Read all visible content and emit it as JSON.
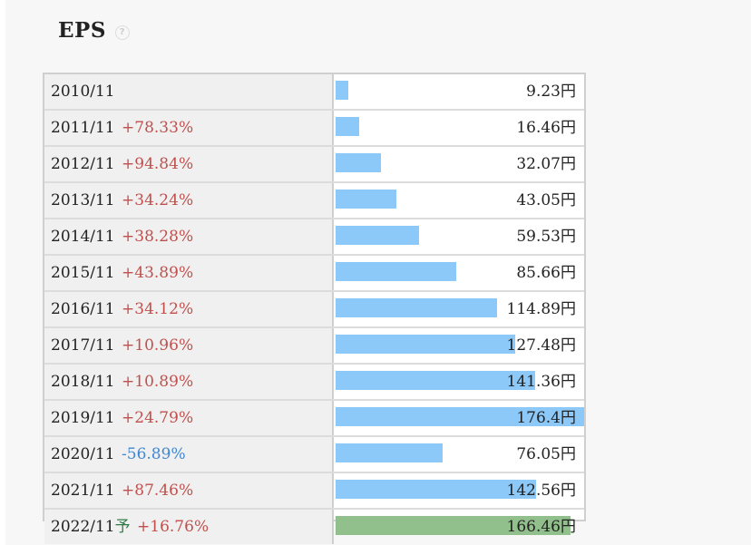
{
  "title": "EPS",
  "help_icon": "question-circle-icon",
  "colors": {
    "bar": "#8cc8f8",
    "forecast_bar": "#92c08c",
    "positive": "#c0504d",
    "negative": "#3f87d4"
  },
  "chart_data": {
    "type": "bar",
    "orientation": "horizontal",
    "title": "EPS",
    "unit": "円",
    "xlim": [
      0,
      176.4
    ],
    "rows": [
      {
        "period": "2010/11",
        "change": "",
        "forecast": false,
        "value": 9.23,
        "value_label": "9.23円"
      },
      {
        "period": "2011/11",
        "change": "+78.33%",
        "forecast": false,
        "value": 16.46,
        "value_label": "16.46円"
      },
      {
        "period": "2012/11",
        "change": "+94.84%",
        "forecast": false,
        "value": 32.07,
        "value_label": "32.07円"
      },
      {
        "period": "2013/11",
        "change": "+34.24%",
        "forecast": false,
        "value": 43.05,
        "value_label": "43.05円"
      },
      {
        "period": "2014/11",
        "change": "+38.28%",
        "forecast": false,
        "value": 59.53,
        "value_label": "59.53円"
      },
      {
        "period": "2015/11",
        "change": "+43.89%",
        "forecast": false,
        "value": 85.66,
        "value_label": "85.66円"
      },
      {
        "period": "2016/11",
        "change": "+34.12%",
        "forecast": false,
        "value": 114.89,
        "value_label": "114.89円"
      },
      {
        "period": "2017/11",
        "change": "+10.96%",
        "forecast": false,
        "value": 127.48,
        "value_label": "127.48円"
      },
      {
        "period": "2018/11",
        "change": "+10.89%",
        "forecast": false,
        "value": 141.36,
        "value_label": "141.36円"
      },
      {
        "period": "2019/11",
        "change": "+24.79%",
        "forecast": false,
        "value": 176.4,
        "value_label": "176.4円"
      },
      {
        "period": "2020/11",
        "change": "-56.89%",
        "forecast": false,
        "value": 76.05,
        "value_label": "76.05円"
      },
      {
        "period": "2021/11",
        "change": "+87.46%",
        "forecast": false,
        "value": 142.56,
        "value_label": "142.56円"
      },
      {
        "period": "2022/11",
        "change": "+16.76%",
        "forecast": true,
        "forecast_mark": "予",
        "value": 166.46,
        "value_label": "166.46円"
      }
    ]
  }
}
